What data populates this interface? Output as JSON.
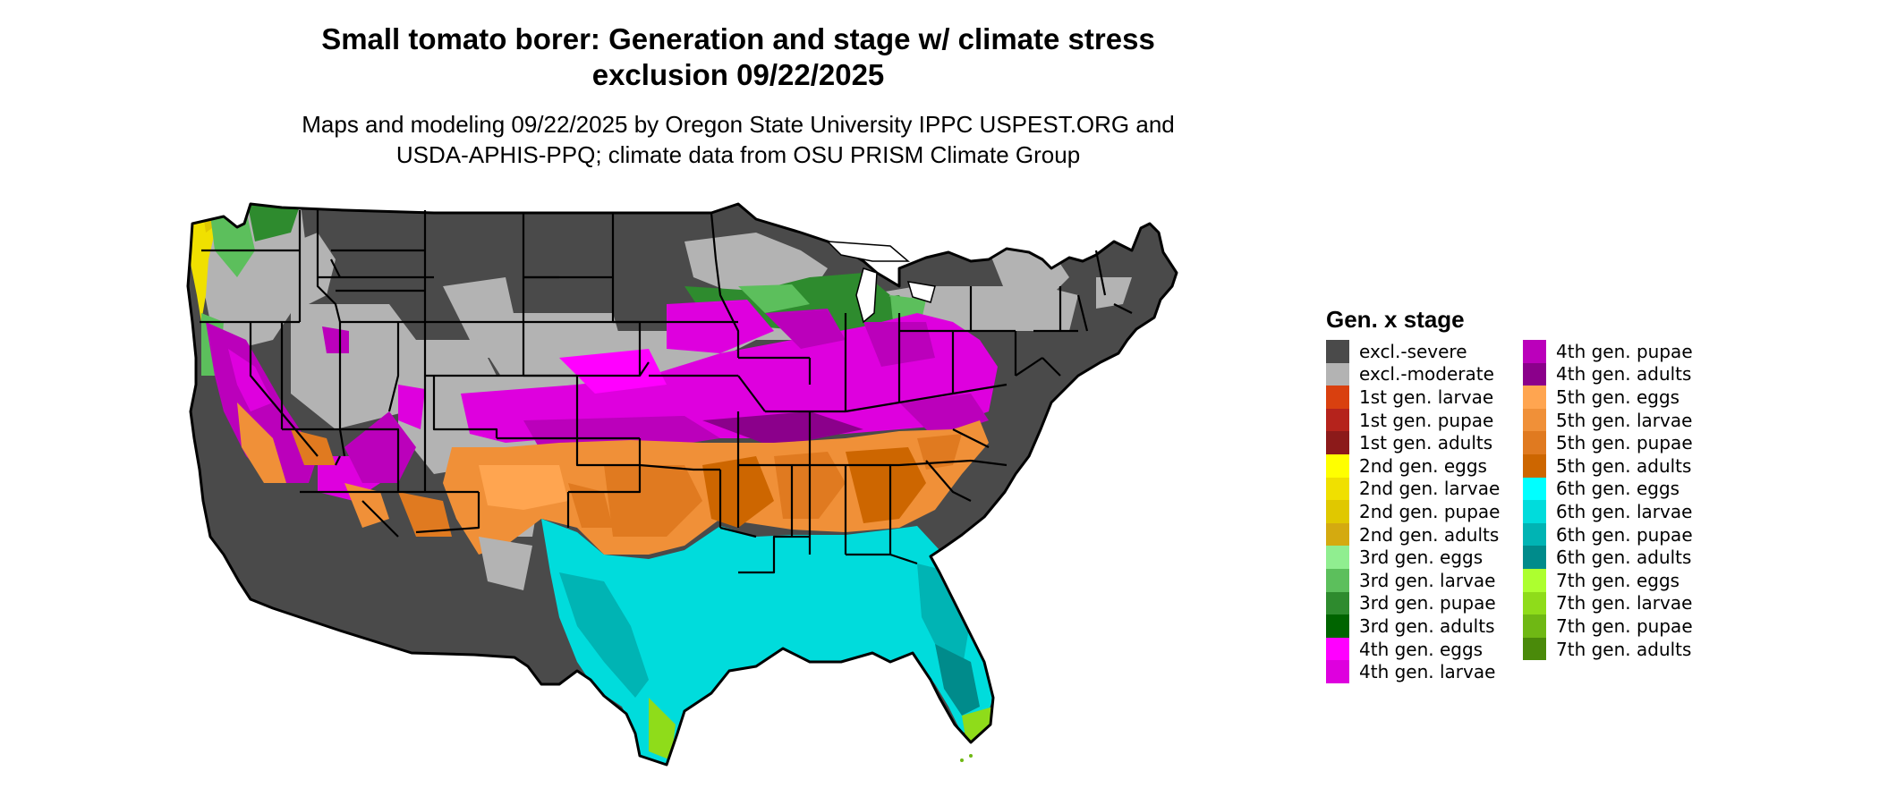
{
  "title_line1": "Small tomato borer: Generation and stage w/ climate stress",
  "title_line2": "exclusion 09/22/2025",
  "subtitle_line1": "Maps and modeling 09/22/2025 by Oregon State University IPPC USPEST.ORG and",
  "subtitle_line2": "USDA-APHIS-PPQ; climate data from OSU PRISM Climate Group",
  "legend": {
    "title": "Gen. x stage",
    "items": [
      {
        "label": "excl.-severe",
        "color": "#4a4a4a"
      },
      {
        "label": "excl.-moderate",
        "color": "#b3b3b3"
      },
      {
        "label": "1st gen. larvae",
        "color": "#d9400f"
      },
      {
        "label": "1st gen. pupae",
        "color": "#b5231c"
      },
      {
        "label": "1st gen. adults",
        "color": "#8c1a1a"
      },
      {
        "label": "2nd gen. eggs",
        "color": "#ffff00"
      },
      {
        "label": "2nd gen. larvae",
        "color": "#f0e000"
      },
      {
        "label": "2nd gen. pupae",
        "color": "#e0c800"
      },
      {
        "label": "2nd gen. adults",
        "color": "#d4aa10"
      },
      {
        "label": "3rd gen. eggs",
        "color": "#90ee90"
      },
      {
        "label": "3rd gen. larvae",
        "color": "#5cbf5c"
      },
      {
        "label": "3rd gen. pupae",
        "color": "#2e8b2e"
      },
      {
        "label": "3rd gen. adults",
        "color": "#006400"
      },
      {
        "label": "4th gen. eggs",
        "color": "#ff00ff"
      },
      {
        "label": "4th gen. larvae",
        "color": "#de00de"
      },
      {
        "label": "4th gen. pupae",
        "color": "#bb00bb"
      },
      {
        "label": "4th gen. adults",
        "color": "#8b008b"
      },
      {
        "label": "5th gen. eggs",
        "color": "#ffa550"
      },
      {
        "label": "5th gen. larvae",
        "color": "#f09038"
      },
      {
        "label": "5th gen. pupae",
        "color": "#e07a20"
      },
      {
        "label": "5th gen. adults",
        "color": "#cd6600"
      },
      {
        "label": "6th gen. eggs",
        "color": "#00ffff"
      },
      {
        "label": "6th gen. larvae",
        "color": "#00dcdc"
      },
      {
        "label": "6th gen. pupae",
        "color": "#00b4b4"
      },
      {
        "label": "6th gen. adults",
        "color": "#008b8b"
      },
      {
        "label": "7th gen. eggs",
        "color": "#adff2f"
      },
      {
        "label": "7th gen. larvae",
        "color": "#8fdc1a"
      },
      {
        "label": "7th gen. pupae",
        "color": "#6fb814"
      },
      {
        "label": "7th gen. adults",
        "color": "#4a8a0a"
      }
    ]
  }
}
